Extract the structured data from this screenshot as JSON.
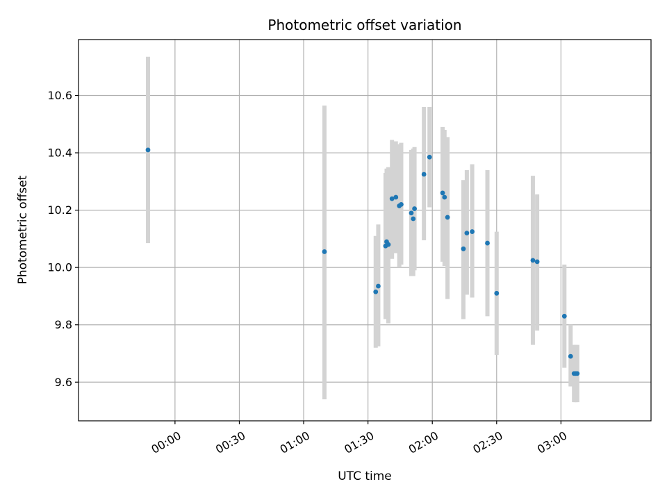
{
  "chart_data": {
    "type": "scatter",
    "title": "Photometric offset variation",
    "xlabel": "UTC time",
    "ylabel": "Photometric offset",
    "x_unit": "minutes",
    "xlim": [
      -45,
      222
    ],
    "ylim": [
      9.465,
      10.795
    ],
    "x_ticks": [
      {
        "value": 0,
        "label": "00:00"
      },
      {
        "value": 30,
        "label": "00:30"
      },
      {
        "value": 60,
        "label": "01:00"
      },
      {
        "value": 90,
        "label": "01:30"
      },
      {
        "value": 120,
        "label": "02:00"
      },
      {
        "value": 150,
        "label": "02:30"
      },
      {
        "value": 180,
        "label": "03:00"
      }
    ],
    "y_ticks": [
      9.6,
      9.8,
      10.0,
      10.2,
      10.4,
      10.6
    ],
    "grid": true,
    "series_color": "#1f77b4",
    "errorbar_color": "#d3d3d3",
    "points": [
      {
        "x": -12.6,
        "y": 10.41,
        "lo": 10.085,
        "hi": 10.735
      },
      {
        "x": 69.7,
        "y": 10.055,
        "lo": 9.54,
        "hi": 10.565
      },
      {
        "x": 93.6,
        "y": 9.915,
        "lo": 9.72,
        "hi": 10.11
      },
      {
        "x": 94.8,
        "y": 9.935,
        "lo": 9.725,
        "hi": 10.15
      },
      {
        "x": 98.2,
        "y": 10.075,
        "lo": 9.82,
        "hi": 10.33
      },
      {
        "x": 98.7,
        "y": 10.09,
        "lo": 9.835,
        "hi": 10.345
      },
      {
        "x": 99.5,
        "y": 10.08,
        "lo": 9.805,
        "hi": 10.35
      },
      {
        "x": 101.2,
        "y": 10.24,
        "lo": 10.03,
        "hi": 10.445
      },
      {
        "x": 103.0,
        "y": 10.245,
        "lo": 10.05,
        "hi": 10.44
      },
      {
        "x": 104.6,
        "y": 10.215,
        "lo": 10.0,
        "hi": 10.43
      },
      {
        "x": 105.5,
        "y": 10.22,
        "lo": 10.01,
        "hi": 10.435
      },
      {
        "x": 110.2,
        "y": 10.19,
        "lo": 9.97,
        "hi": 10.41
      },
      {
        "x": 111.1,
        "y": 10.17,
        "lo": 9.97,
        "hi": 10.415
      },
      {
        "x": 111.7,
        "y": 10.205,
        "lo": 9.99,
        "hi": 10.42
      },
      {
        "x": 116.1,
        "y": 10.325,
        "lo": 10.095,
        "hi": 10.56
      },
      {
        "x": 118.7,
        "y": 10.385,
        "lo": 10.21,
        "hi": 10.56
      },
      {
        "x": 124.8,
        "y": 10.26,
        "lo": 10.02,
        "hi": 10.49
      },
      {
        "x": 125.7,
        "y": 10.245,
        "lo": 10.005,
        "hi": 10.48
      },
      {
        "x": 127.1,
        "y": 10.175,
        "lo": 9.89,
        "hi": 10.455
      },
      {
        "x": 134.5,
        "y": 10.065,
        "lo": 9.82,
        "hi": 10.305
      },
      {
        "x": 136.1,
        "y": 10.12,
        "lo": 9.905,
        "hi": 10.34
      },
      {
        "x": 138.6,
        "y": 10.125,
        "lo": 9.895,
        "hi": 10.36
      },
      {
        "x": 145.7,
        "y": 10.085,
        "lo": 9.83,
        "hi": 10.34
      },
      {
        "x": 150.0,
        "y": 9.91,
        "lo": 9.695,
        "hi": 10.125
      },
      {
        "x": 166.9,
        "y": 10.025,
        "lo": 9.73,
        "hi": 10.32
      },
      {
        "x": 168.9,
        "y": 10.02,
        "lo": 9.78,
        "hi": 10.255
      },
      {
        "x": 181.6,
        "y": 9.83,
        "lo": 9.65,
        "hi": 10.01
      },
      {
        "x": 184.5,
        "y": 9.69,
        "lo": 9.585,
        "hi": 9.8
      },
      {
        "x": 186.1,
        "y": 9.63,
        "lo": 9.53,
        "hi": 9.73
      },
      {
        "x": 186.9,
        "y": 9.63,
        "lo": 9.53,
        "hi": 9.73
      },
      {
        "x": 187.6,
        "y": 9.63,
        "lo": 9.53,
        "hi": 9.73
      }
    ]
  }
}
